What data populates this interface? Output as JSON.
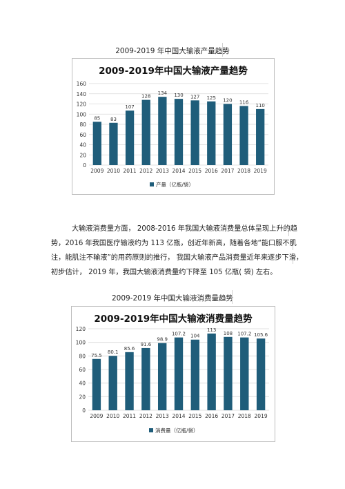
{
  "captions": {
    "production": "2009-2019 年中国大输液产量趋势",
    "consumption": "2009-2019 年中国大输液消费量趋势"
  },
  "paragraph": {
    "lines": [
      "大输液消费量方面，   2008-2016 年我国大输液消费量总体呈现上升的趋",
      "势，2016 年我国医疗输液约为     113 亿瓶，创近年新高，随着各地“能口服不肌",
      "注，能肌注不输液”的用药原则的推行，   我国大输液产品消费量近年来逐步下滑，",
      "初步估计，   2019 年，我国大输液消费量约下降至      105 亿瓶( 袋) 左右。"
    ]
  },
  "chart_data": [
    {
      "type": "bar",
      "title": "2009-2019年中国大输液产量趋势",
      "categories": [
        "2009",
        "2010",
        "2011",
        "2012",
        "2013",
        "2014",
        "2015",
        "2016",
        "2017",
        "2018",
        "2019"
      ],
      "series": [
        {
          "name": "产量（亿瓶/袋）",
          "values": [
            85,
            83,
            107,
            128,
            134,
            130,
            127,
            125,
            120,
            116,
            110
          ],
          "labels": [
            "85",
            "83",
            "107",
            "128",
            "134",
            "130",
            "127",
            "125",
            "120",
            "116",
            "110"
          ]
        }
      ],
      "ylim": [
        0,
        160
      ],
      "yticks": [
        0,
        20,
        40,
        60,
        80,
        100,
        120,
        140,
        160
      ],
      "grid": true,
      "legend": "bottom",
      "color": "#1f5d7a"
    },
    {
      "type": "bar",
      "title": "2009-2019年中国大输液消费量趋势",
      "categories": [
        "2009",
        "2010",
        "2011",
        "2012",
        "2013",
        "2014",
        "2015",
        "2016",
        "2017",
        "2018",
        "2019"
      ],
      "series": [
        {
          "name": "消费量（亿瓶/袋）",
          "values": [
            75.5,
            80.1,
            85.6,
            91.6,
            98.9,
            107.2,
            104,
            113,
            108,
            107.2,
            105.6
          ],
          "labels": [
            "75.5",
            "80.1",
            "85.6",
            "91.6",
            "98.9",
            "107.2",
            "104",
            "113",
            "108",
            "107.2",
            "105.6"
          ]
        }
      ],
      "ylim": [
        0,
        120
      ],
      "yticks": [
        0,
        20,
        40,
        60,
        80,
        100,
        120
      ],
      "grid": true,
      "legend": "bottom",
      "color": "#1f5d7a"
    }
  ]
}
